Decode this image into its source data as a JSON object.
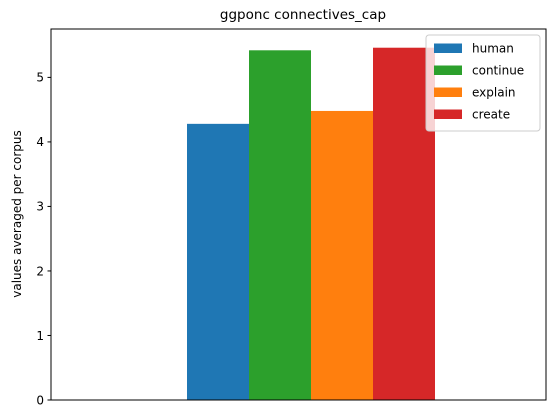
{
  "chart_data": {
    "type": "bar",
    "title": "ggponc connectives_cap",
    "xlabel": "",
    "ylabel": "values averaged per corpus",
    "ylim": [
      0,
      5.75
    ],
    "yticks": [
      0,
      1,
      2,
      3,
      4,
      5
    ],
    "grid": false,
    "legend_position": "top-right",
    "series": [
      {
        "name": "human",
        "value": 4.28,
        "color": "#1f77b4"
      },
      {
        "name": "continue",
        "value": 5.42,
        "color": "#2ca02c"
      },
      {
        "name": "explain",
        "value": 4.48,
        "color": "#ff7f0e"
      },
      {
        "name": "create",
        "value": 5.46,
        "color": "#d62728"
      }
    ]
  }
}
